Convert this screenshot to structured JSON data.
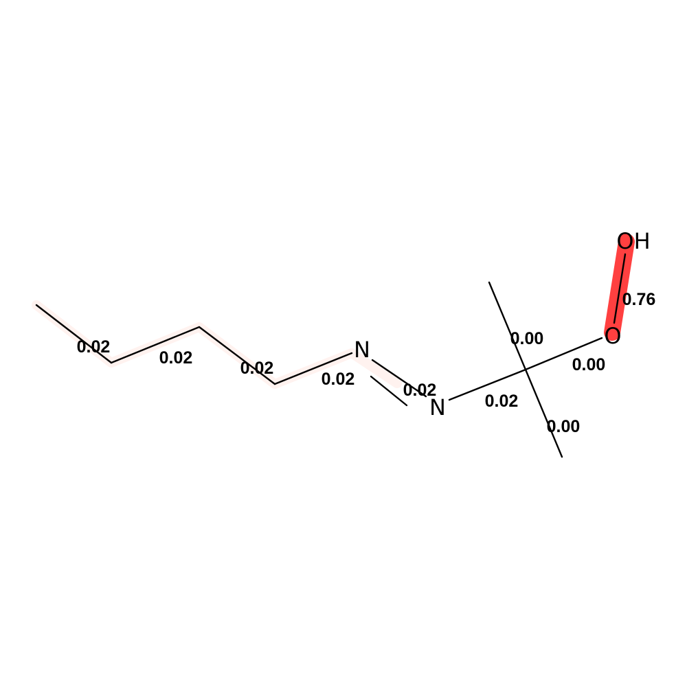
{
  "atoms": {
    "n1": "N",
    "n2": "N",
    "o_ether": "O",
    "oh": "OH"
  },
  "bond_weights": {
    "c1_c2": "0.02",
    "c2_c3": "0.02",
    "c3_c4": "0.02",
    "c4_n1": "0.02",
    "n1_n2": "0.02",
    "n2_cq": "0.02",
    "cq_me_top": "0.00",
    "cq_o": "0.00",
    "cq_me_bottom": "0.00",
    "o_oh": "0.76"
  },
  "colors": {
    "bond": "#000000",
    "highlight_strong": "#ff4040",
    "highlight_faint": "#fff2ef"
  }
}
